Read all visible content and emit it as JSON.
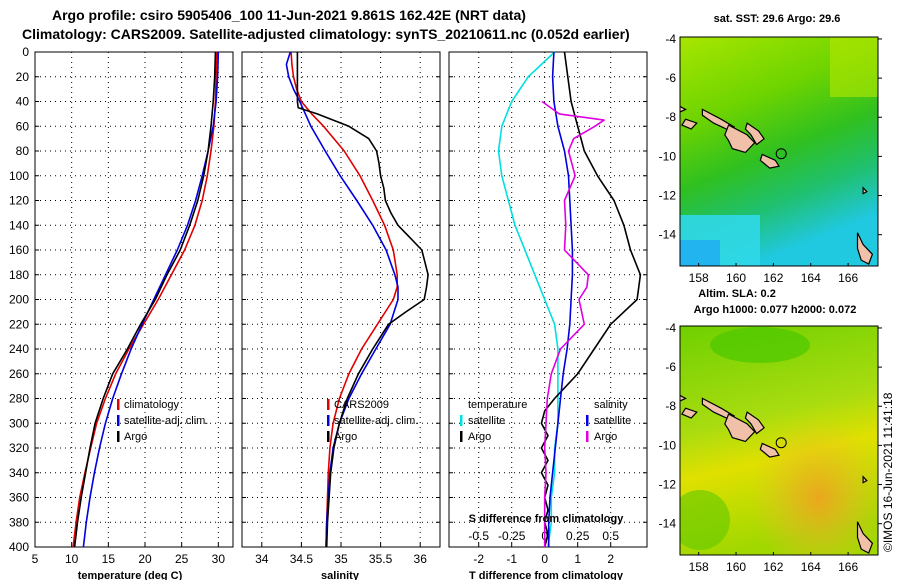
{
  "title": {
    "line1": "Argo profile: csiro 5905406_100 11-Jun-2021 9.861S 162.42E (NRT data)",
    "line2": "Climatology: CARS2009. Satellite-adjusted climatology: synTS_20210611.nc (0.052d earlier)"
  },
  "colors": {
    "climatology": "#e00000",
    "satellite": "#0000e0",
    "argo": "#000000",
    "temp_diff": "#00e0e0",
    "sal_diff": "#e000e0"
  },
  "depth_ticks": [
    "0",
    "20",
    "40",
    "60",
    "80",
    "100",
    "120",
    "140",
    "160",
    "180",
    "200",
    "220",
    "240",
    "260",
    "280",
    "300",
    "320",
    "340",
    "360",
    "380",
    "400"
  ],
  "chart_data": [
    {
      "type": "line",
      "name": "temperature",
      "xlabel": "temperature (deg C)",
      "ylabel": "depth",
      "xlim": [
        5,
        32
      ],
      "ylim": [
        400,
        0
      ],
      "x_ticks": [
        "5",
        "10",
        "15",
        "20",
        "25",
        "30"
      ],
      "legend": [
        "climatology",
        "satellite-adj. clim.",
        "Argo"
      ],
      "series": [
        {
          "name": "climatology",
          "color": "#e00000",
          "depth": [
            0,
            20,
            40,
            60,
            80,
            100,
            120,
            140,
            160,
            180,
            200,
            220,
            240,
            260,
            280,
            300,
            320,
            340,
            360,
            380,
            400
          ],
          "values": [
            29.8,
            29.7,
            29.6,
            29.4,
            29.0,
            28.5,
            27.8,
            26.8,
            25.4,
            23.6,
            21.8,
            19.8,
            17.8,
            16.0,
            14.6,
            13.4,
            12.6,
            11.8,
            11.1,
            10.6,
            10.2
          ]
        },
        {
          "name": "satellite-adj. clim.",
          "color": "#0000e0",
          "depth": [
            0,
            20,
            40,
            60,
            80,
            100,
            120,
            140,
            160,
            180,
            200,
            220,
            240,
            260,
            280,
            300,
            320,
            340,
            360,
            380,
            400
          ],
          "values": [
            30.0,
            29.9,
            29.7,
            29.3,
            28.6,
            27.8,
            26.9,
            25.8,
            24.4,
            22.8,
            21.2,
            19.6,
            18.1,
            16.8,
            15.6,
            14.6,
            13.8,
            13.1,
            12.5,
            12.0,
            11.6
          ]
        },
        {
          "name": "Argo",
          "color": "#000000",
          "depth": [
            0,
            20,
            40,
            60,
            80,
            100,
            120,
            140,
            160,
            180,
            200,
            220,
            240,
            260,
            280,
            300,
            320,
            340,
            360,
            380,
            400
          ],
          "values": [
            29.6,
            29.5,
            29.3,
            29.0,
            28.6,
            28.0,
            27.2,
            26.1,
            24.8,
            23.0,
            21.4,
            19.4,
            17.6,
            15.6,
            14.3,
            13.2,
            12.5,
            11.9,
            11.3,
            10.8,
            10.4
          ]
        }
      ]
    },
    {
      "type": "line",
      "name": "salinity",
      "xlabel": "salinity",
      "ylabel": "depth",
      "xlim": [
        33.75,
        36.25
      ],
      "ylim": [
        400,
        0
      ],
      "x_ticks": [
        "34",
        "34.5",
        "35",
        "35.5",
        "36"
      ],
      "legend": [
        "CARS2009",
        "satellite-adj. clim.",
        "Argo"
      ],
      "series": [
        {
          "name": "CARS2009",
          "color": "#e00000",
          "depth": [
            0,
            10,
            20,
            30,
            40,
            50,
            60,
            80,
            100,
            120,
            140,
            160,
            180,
            190,
            200,
            220,
            240,
            260,
            280,
            300,
            320,
            340,
            360,
            380,
            400
          ],
          "values": [
            34.37,
            34.38,
            34.4,
            34.44,
            34.5,
            34.63,
            34.78,
            35.04,
            35.24,
            35.4,
            35.55,
            35.66,
            35.71,
            35.71,
            35.66,
            35.46,
            35.26,
            35.1,
            34.98,
            34.9,
            34.86,
            34.84,
            34.83,
            34.82,
            34.81
          ]
        },
        {
          "name": "satellite-adj. clim.",
          "color": "#0000e0",
          "depth": [
            0,
            10,
            20,
            30,
            40,
            60,
            80,
            100,
            120,
            140,
            160,
            180,
            190,
            200,
            220,
            240,
            260,
            280,
            300,
            320,
            340,
            360,
            380,
            400
          ],
          "values": [
            34.36,
            34.31,
            34.34,
            34.4,
            34.48,
            34.62,
            34.8,
            34.99,
            35.2,
            35.4,
            35.57,
            35.68,
            35.72,
            35.72,
            35.62,
            35.44,
            35.26,
            35.1,
            34.98,
            34.9,
            34.86,
            34.84,
            34.82,
            34.81
          ]
        },
        {
          "name": "Argo",
          "color": "#000000",
          "depth": [
            0,
            10,
            20,
            30,
            40,
            45,
            50,
            60,
            70,
            80,
            90,
            100,
            110,
            120,
            130,
            140,
            150,
            160,
            170,
            180,
            190,
            200,
            210,
            220,
            240,
            260,
            280,
            300,
            320,
            340,
            360,
            380,
            400
          ],
          "values": [
            34.45,
            34.45,
            34.45,
            34.45,
            34.45,
            34.46,
            34.7,
            35.1,
            35.35,
            35.45,
            35.48,
            35.5,
            35.54,
            35.56,
            35.63,
            35.72,
            35.87,
            36.02,
            36.06,
            36.1,
            36.08,
            36.05,
            35.82,
            35.6,
            35.4,
            35.22,
            35.08,
            34.98,
            34.91,
            34.87,
            34.85,
            34.83,
            34.82
          ]
        }
      ]
    },
    {
      "type": "line",
      "name": "difference-from-climatology",
      "xlabel": "T difference from climatology",
      "x2label": "S difference from climatology",
      "ylabel": "depth",
      "xlim": [
        -2.9,
        3.1
      ],
      "x2lim": [
        -0.725,
        0.775
      ],
      "ylim": [
        400,
        0
      ],
      "x_ticks": [
        "-2",
        "-1",
        "0",
        "1",
        "2"
      ],
      "x2_ticks": [
        "-0.5",
        "-0.25",
        "0",
        "0.25",
        "0.5"
      ],
      "legend_temperature": {
        "header": "temperature",
        "entries": [
          "satellite",
          "Argo"
        ]
      },
      "legend_salinity": {
        "header": "salinity",
        "entries": [
          "satellite",
          "Argo"
        ]
      },
      "series": [
        {
          "name": "temperature satellite",
          "axis": "T",
          "color": "#00e0e0",
          "depth": [
            0,
            20,
            40,
            60,
            80,
            100,
            120,
            140,
            160,
            180,
            200,
            220,
            240,
            260,
            280,
            300,
            320,
            340,
            360,
            380,
            400
          ],
          "values": [
            0.3,
            -0.5,
            -1.0,
            -1.3,
            -1.4,
            -1.3,
            -1.1,
            -0.9,
            -0.6,
            -0.3,
            0.0,
            0.3,
            0.4,
            0.4,
            0.4,
            0.4,
            0.3,
            0.3,
            0.2,
            0.2,
            0.1
          ]
        },
        {
          "name": "temperature Argo",
          "axis": "T",
          "color": "#000000",
          "depth": [
            0,
            20,
            40,
            60,
            80,
            100,
            120,
            140,
            160,
            180,
            200,
            220,
            240,
            260,
            280,
            290,
            300,
            310,
            320,
            330,
            340,
            350,
            360,
            370,
            380,
            390,
            400
          ],
          "values": [
            0.6,
            0.7,
            0.8,
            1.0,
            1.2,
            1.6,
            2.1,
            2.4,
            2.6,
            2.9,
            2.8,
            2.0,
            1.5,
            1.0,
            0.3,
            0.0,
            -0.1,
            0.1,
            -0.1,
            0.1,
            -0.1,
            0.1,
            0.0,
            0.1,
            0.0,
            0.1,
            0.0
          ]
        },
        {
          "name": "salinity satellite",
          "axis": "S",
          "color": "#0000e0",
          "depth": [
            0,
            20,
            40,
            60,
            80,
            100,
            120,
            140,
            160,
            180,
            200,
            220,
            240,
            260,
            280,
            300,
            320,
            340,
            360,
            380,
            400
          ],
          "values": [
            0.07,
            0.06,
            0.07,
            0.1,
            0.15,
            0.18,
            0.19,
            0.2,
            0.21,
            0.21,
            0.2,
            0.19,
            0.17,
            0.14,
            0.12,
            0.1,
            0.08,
            0.06,
            0.04,
            0.03,
            0.03
          ]
        },
        {
          "name": "salinity Argo",
          "axis": "S",
          "color": "#e000e0",
          "depth": [
            40,
            50,
            55,
            60,
            70,
            80,
            100,
            120,
            140,
            160,
            180,
            190,
            200,
            220,
            240,
            260,
            280,
            300,
            320,
            340,
            360,
            380,
            400
          ],
          "values": [
            -0.02,
            0.11,
            0.45,
            0.38,
            0.22,
            0.18,
            0.23,
            0.15,
            0.16,
            0.15,
            0.33,
            0.32,
            0.26,
            0.3,
            0.12,
            0.05,
            0.02,
            0.01,
            0.0,
            0.01,
            0.0,
            0.0,
            0.0
          ]
        }
      ]
    }
  ],
  "map_sst": {
    "title": "sat. SST: 29.6 Argo: 29.6",
    "lat_ticks": [
      "-4",
      "-6",
      "-8",
      "-10",
      "-12",
      "-14"
    ],
    "lon_ticks": [
      "158",
      "160",
      "162",
      "164",
      "166"
    ],
    "lat_range": [
      -15.6,
      -3.9
    ],
    "lon_range": [
      157.0,
      167.6
    ],
    "argo_lon": 162.42,
    "argo_lat": -9.861
  },
  "map_sla": {
    "title1": "Altim. SLA: 0.2",
    "title2": "Argo h1000: 0.077 h2000: 0.072",
    "lat_ticks": [
      "-4",
      "-6",
      "-8",
      "-10",
      "-12",
      "-14"
    ],
    "lon_ticks": [
      "158",
      "160",
      "162",
      "164",
      "166"
    ],
    "lat_range": [
      -15.6,
      -3.9
    ],
    "lon_range": [
      157.0,
      167.6
    ],
    "argo_lon": 162.42,
    "argo_lat": -9.861
  },
  "credit": "©IMOS 16-Jun-2021 11:41:18"
}
